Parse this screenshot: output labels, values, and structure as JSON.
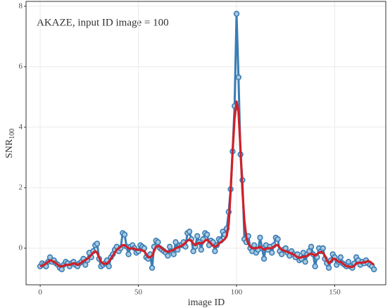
{
  "chart_data": {
    "type": "line",
    "annotation": "AKAZE, input ID image = 100",
    "xlabel": "image ID",
    "ylabel": "SNR",
    "ylabel_sub": "100",
    "xlim": [
      -7.2,
      176
    ],
    "ylim": [
      -1.21,
      8.16
    ],
    "xticks": [
      0,
      50,
      100,
      150
    ],
    "yticks": [
      0,
      2,
      4,
      6,
      8
    ],
    "grid": true,
    "x": [
      0,
      1,
      2,
      3,
      4,
      5,
      6,
      7,
      8,
      9,
      10,
      11,
      12,
      13,
      14,
      15,
      16,
      17,
      18,
      19,
      20,
      21,
      22,
      23,
      24,
      25,
      26,
      27,
      28,
      29,
      30,
      31,
      32,
      33,
      34,
      35,
      36,
      37,
      38,
      39,
      40,
      41,
      42,
      43,
      44,
      45,
      46,
      47,
      48,
      49,
      50,
      51,
      52,
      53,
      54,
      55,
      56,
      57,
      58,
      59,
      60,
      61,
      62,
      63,
      64,
      65,
      66,
      67,
      68,
      69,
      70,
      71,
      72,
      73,
      74,
      75,
      76,
      77,
      78,
      79,
      80,
      81,
      82,
      83,
      84,
      85,
      86,
      87,
      88,
      89,
      90,
      91,
      92,
      93,
      94,
      95,
      96,
      97,
      98,
      99,
      100,
      101,
      102,
      103,
      104,
      105,
      106,
      107,
      108,
      109,
      110,
      111,
      112,
      113,
      114,
      115,
      116,
      117,
      118,
      119,
      120,
      121,
      122,
      123,
      124,
      125,
      126,
      127,
      128,
      129,
      130,
      131,
      132,
      133,
      134,
      135,
      136,
      137,
      138,
      139,
      140,
      141,
      142,
      143,
      144,
      145,
      146,
      147,
      148,
      149,
      150,
      151,
      152,
      153,
      154,
      155,
      156,
      157,
      158,
      159,
      160,
      161,
      162,
      163,
      164,
      165,
      166,
      167,
      168,
      169,
      170
    ],
    "series": [
      {
        "color": "#3a7db5",
        "markers": true,
        "values": [
          -0.6,
          -0.5,
          -0.55,
          -0.6,
          -0.45,
          -0.3,
          -0.45,
          -0.4,
          -0.5,
          -0.55,
          -0.65,
          -0.7,
          -0.55,
          -0.45,
          -0.5,
          -0.6,
          -0.5,
          -0.45,
          -0.55,
          -0.6,
          -0.5,
          -0.45,
          -0.35,
          -0.55,
          -0.4,
          -0.15,
          -0.3,
          -0.1,
          0.1,
          0.15,
          -0.35,
          -0.6,
          -0.55,
          -0.5,
          -0.4,
          -0.6,
          -0.3,
          -0.2,
          -0.05,
          0.05,
          -0.1,
          0.0,
          0.5,
          0.45,
          0.05,
          -0.2,
          0.05,
          0.1,
          0.0,
          -0.15,
          -0.1,
          0.1,
          0.05,
          0.0,
          -0.3,
          -0.35,
          -0.2,
          -0.65,
          0.05,
          0.25,
          0.2,
          0.0,
          -0.05,
          -0.1,
          -0.15,
          -0.25,
          0.05,
          -0.1,
          -0.2,
          0.2,
          -0.05,
          0.1,
          0.1,
          0.2,
          0.05,
          0.5,
          0.55,
          0.3,
          -0.1,
          0.05,
          0.4,
          0.2,
          -0.05,
          0.3,
          0.5,
          0.45,
          0.1,
          0.25,
          0.2,
          -0.1,
          0.1,
          0.3,
          0.25,
          0.55,
          0.45,
          0.65,
          1.2,
          1.95,
          3.2,
          4.7,
          7.75,
          5.65,
          3.1,
          2.25,
          0.3,
          0.2,
          0.4,
          0.0,
          -0.1,
          0.1,
          -0.15,
          -0.05,
          0.35,
          0.0,
          -0.35,
          0.1,
          -0.05,
          0.05,
          -0.15,
          0.1,
          0.35,
          0.3,
          -0.1,
          -0.2,
          -0.05,
          0.0,
          -0.15,
          -0.25,
          -0.1,
          -0.2,
          -0.3,
          -0.2,
          -0.4,
          -0.35,
          -0.15,
          -0.45,
          -0.2,
          -0.1,
          0.05,
          -0.2,
          -0.6,
          -0.3,
          0.0,
          -0.1,
          0.0,
          -0.35,
          -0.5,
          -0.65,
          -0.4,
          -0.2,
          -0.3,
          -0.55,
          -0.45,
          -0.3,
          -0.5,
          -0.55,
          -0.6,
          -0.45,
          -0.6,
          -0.65,
          -0.5,
          -0.3,
          -0.4,
          -0.55,
          -0.45,
          -0.5,
          -0.4,
          -0.5,
          -0.55,
          -0.6,
          -0.7
        ]
      },
      {
        "color": "#d0202a",
        "markers": false,
        "values": [
          -0.6,
          -0.58,
          -0.55,
          -0.5,
          -0.45,
          -0.4,
          -0.42,
          -0.45,
          -0.5,
          -0.55,
          -0.6,
          -0.6,
          -0.58,
          -0.55,
          -0.55,
          -0.55,
          -0.52,
          -0.5,
          -0.52,
          -0.55,
          -0.52,
          -0.48,
          -0.42,
          -0.4,
          -0.35,
          -0.3,
          -0.22,
          -0.15,
          -0.1,
          -0.15,
          -0.3,
          -0.45,
          -0.5,
          -0.52,
          -0.5,
          -0.45,
          -0.35,
          -0.25,
          -0.15,
          -0.05,
          0.0,
          0.05,
          0.1,
          0.1,
          0.05,
          0.0,
          -0.02,
          0.0,
          -0.02,
          -0.05,
          -0.05,
          -0.05,
          -0.08,
          -0.1,
          -0.2,
          -0.3,
          -0.3,
          -0.25,
          -0.1,
          0.05,
          0.08,
          0.05,
          0.0,
          -0.05,
          -0.1,
          -0.12,
          -0.1,
          -0.08,
          -0.05,
          0.0,
          0.02,
          0.05,
          0.08,
          0.12,
          0.18,
          0.25,
          0.28,
          0.25,
          0.15,
          0.1,
          0.15,
          0.18,
          0.15,
          0.18,
          0.25,
          0.28,
          0.22,
          0.15,
          0.08,
          0.05,
          0.08,
          0.15,
          0.2,
          0.25,
          0.3,
          0.4,
          0.8,
          1.9,
          3.2,
          4.3,
          4.85,
          4.5,
          3.3,
          1.9,
          0.9,
          0.35,
          0.15,
          0.05,
          0.0,
          0.0,
          0.0,
          0.02,
          0.05,
          0.0,
          -0.05,
          -0.02,
          0.0,
          0.0,
          0.0,
          0.05,
          0.1,
          0.1,
          0.02,
          -0.05,
          -0.08,
          -0.1,
          -0.12,
          -0.15,
          -0.18,
          -0.2,
          -0.25,
          -0.3,
          -0.32,
          -0.3,
          -0.28,
          -0.28,
          -0.25,
          -0.2,
          -0.18,
          -0.2,
          -0.25,
          -0.2,
          -0.15,
          -0.12,
          -0.15,
          -0.25,
          -0.4,
          -0.5,
          -0.45,
          -0.35,
          -0.35,
          -0.4,
          -0.45,
          -0.45,
          -0.5,
          -0.55,
          -0.6,
          -0.6,
          -0.62,
          -0.62,
          -0.58,
          -0.5,
          -0.48,
          -0.48,
          -0.48,
          -0.47,
          -0.45,
          -0.42,
          -0.45,
          -0.5,
          -0.55
        ]
      }
    ]
  }
}
